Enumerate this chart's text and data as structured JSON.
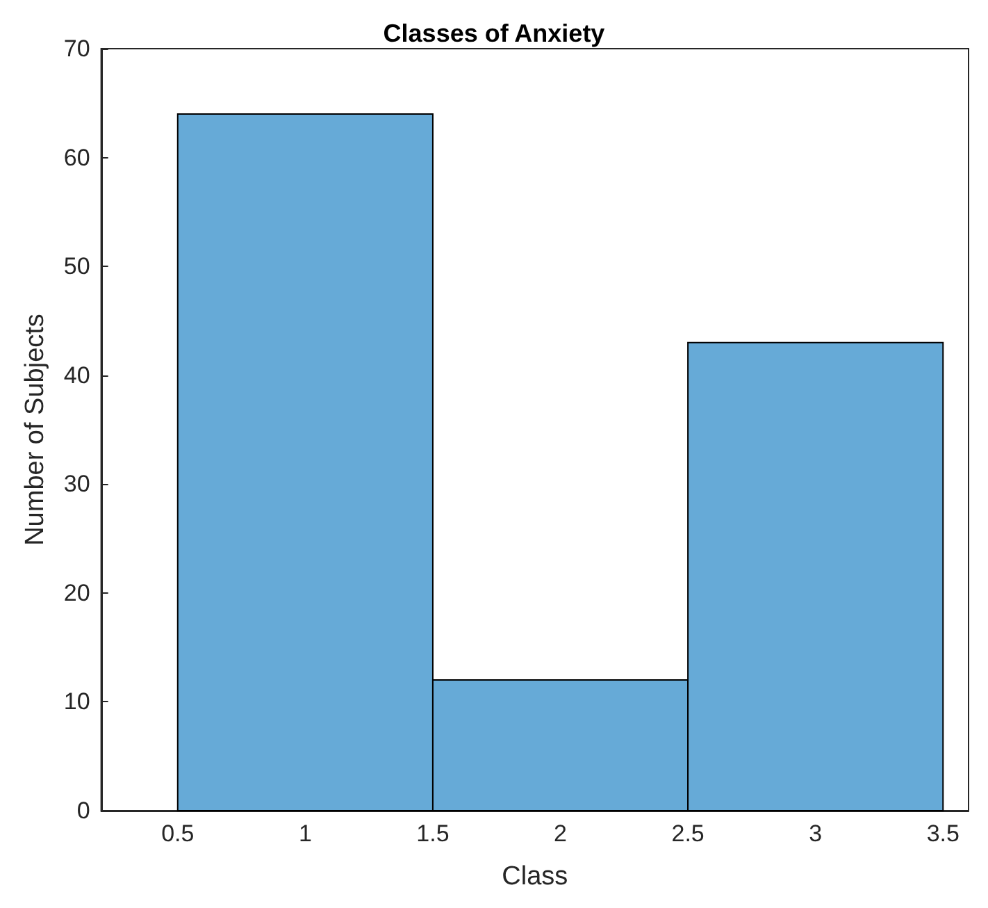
{
  "chart_data": {
    "type": "histogram",
    "title": "Classes of Anxiety",
    "xlabel": "Class",
    "ylabel": "Number of Subjects",
    "bins": [
      0.5,
      1.5,
      2.5,
      3.5
    ],
    "values": [
      64,
      12,
      43
    ],
    "color": "#66aad7",
    "xlim": [
      0.2,
      3.6
    ],
    "xticks": [
      0.5,
      1,
      1.5,
      2,
      2.5,
      3,
      3.5
    ],
    "ylim": [
      0,
      70
    ],
    "yticks": [
      0,
      10,
      20,
      30,
      40,
      50,
      60,
      70
    ]
  }
}
